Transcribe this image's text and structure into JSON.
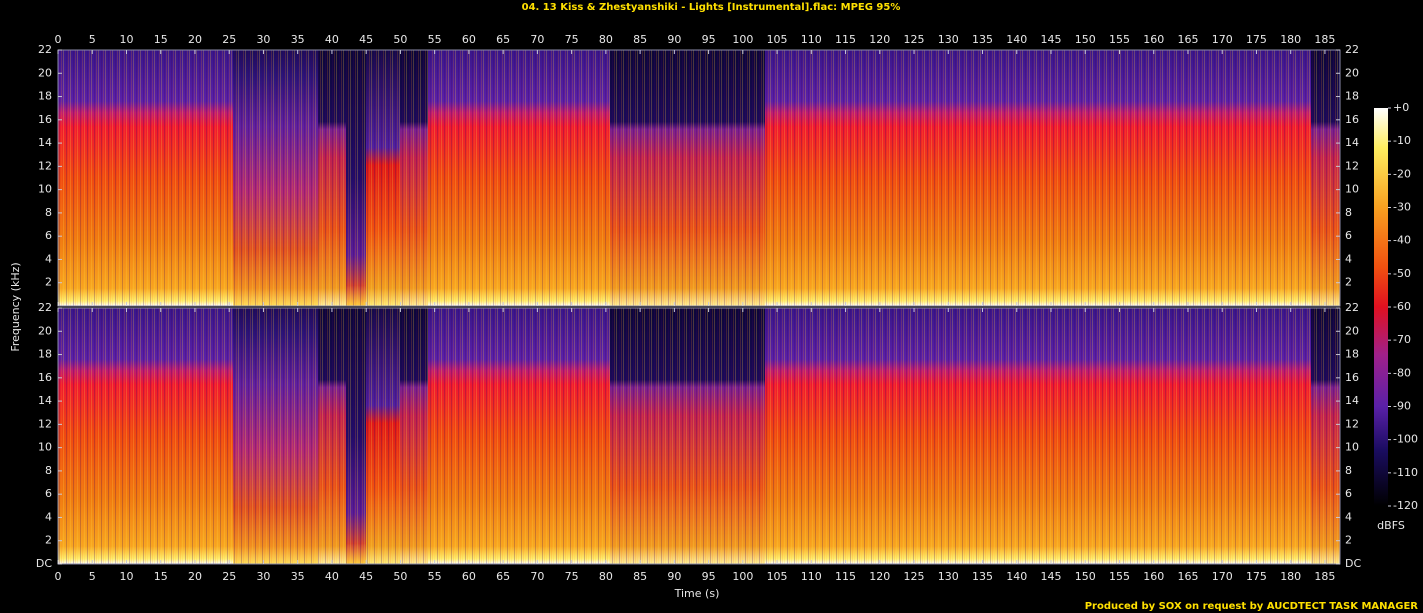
{
  "chart_data": {
    "type": "spectrogram",
    "title": "04. 13 Kiss & Zhestyanshiki - Lights [Instrumental].flac: MPEG 95%",
    "xlabel": "Time (s)",
    "ylabel": "Frequency (kHz)",
    "xlim": [
      0,
      187.2
    ],
    "xticks": [
      0,
      5,
      10,
      15,
      20,
      25,
      30,
      35,
      40,
      45,
      50,
      55,
      60,
      65,
      70,
      75,
      80,
      85,
      90,
      95,
      100,
      105,
      110,
      115,
      120,
      125,
      130,
      135,
      140,
      145,
      150,
      155,
      160,
      165,
      170,
      175,
      180,
      185
    ],
    "ylim": [
      0,
      22
    ],
    "panels": [
      {
        "yticks": [
          2,
          4,
          6,
          8,
          10,
          12,
          14,
          16,
          18,
          20,
          22
        ]
      },
      {
        "yticks": [
          {
            "value": 0,
            "label": "DC"
          },
          2,
          4,
          6,
          8,
          10,
          12,
          14,
          16,
          18,
          20,
          22
        ]
      }
    ],
    "colorbar": {
      "label": "dBFS",
      "lim": [
        -120,
        0
      ],
      "ticks": [
        {
          "value": 0,
          "label": "+0"
        },
        -10,
        -20,
        -30,
        -40,
        -50,
        -60,
        -70,
        -80,
        -90,
        -100,
        -110,
        -120
      ]
    },
    "footer": "Produced by SOX on request by AUCDTECT TASK MANAGER"
  }
}
